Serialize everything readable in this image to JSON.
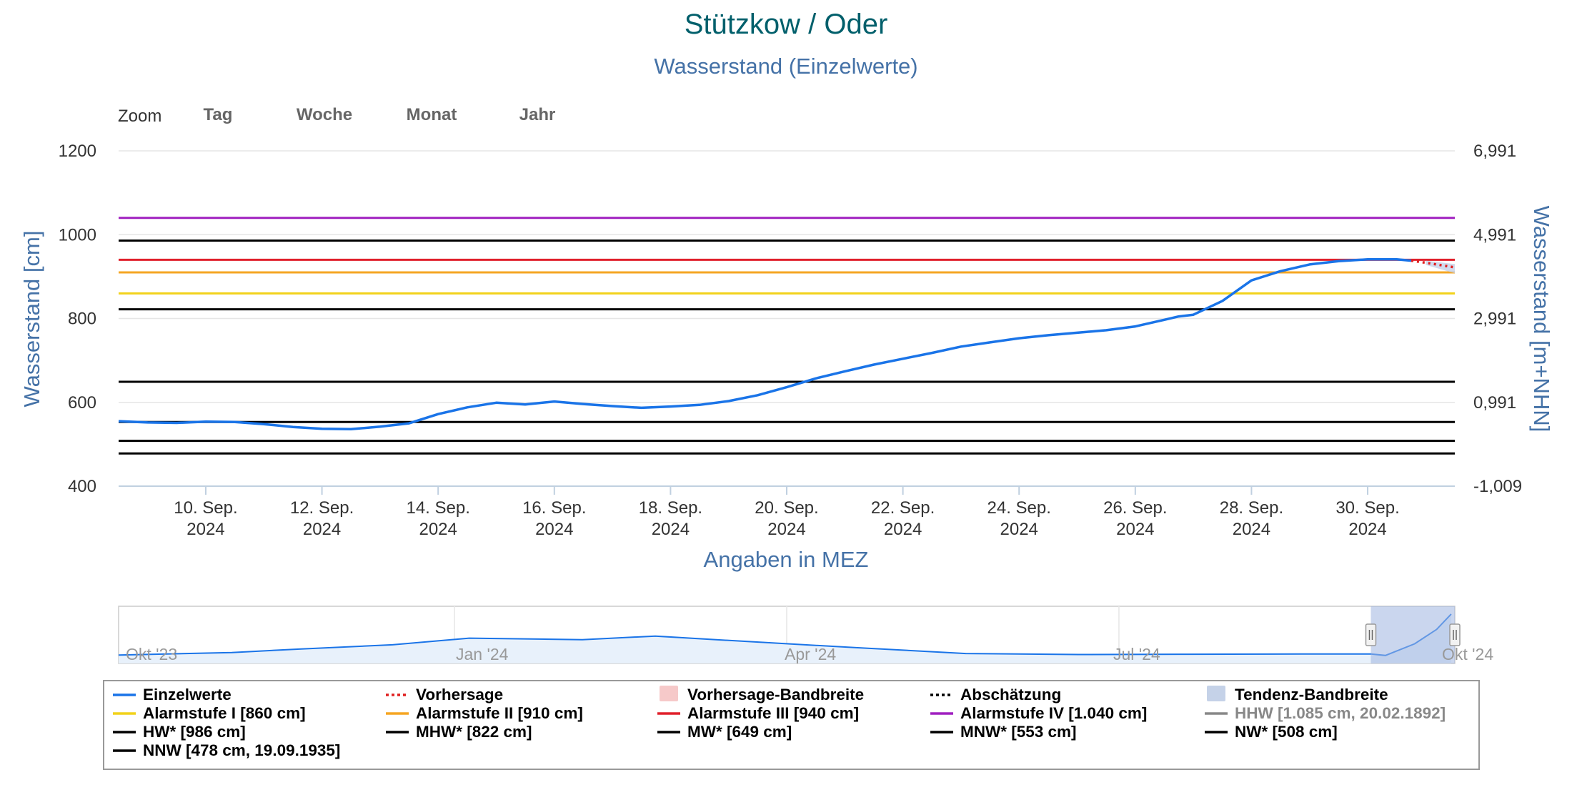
{
  "chart_data": {
    "type": "line",
    "title": "Stützkow / Oder",
    "subtitle": "Wasserstand (Einzelwerte)",
    "ylabel": "Wasserstand [cm]",
    "ylabel_right": "Wasserstand [m+NHN]",
    "xlabel": "Angaben in MEZ",
    "ylim": [
      400,
      1200
    ],
    "y_ticks": [
      "1200",
      "1000",
      "800",
      "600",
      "400"
    ],
    "y_ticks_right": [
      "6,991",
      "4,991",
      "2,991",
      "0,991",
      "-1,009"
    ],
    "x_range": [
      "2024-09-08T12:00",
      "2024-10-01T12:00"
    ],
    "x_ticks": [
      {
        "date": "2024-09-10",
        "line1": "10. Sep.",
        "line2": "2024"
      },
      {
        "date": "2024-09-12",
        "line1": "12. Sep.",
        "line2": "2024"
      },
      {
        "date": "2024-09-14",
        "line1": "14. Sep.",
        "line2": "2024"
      },
      {
        "date": "2024-09-16",
        "line1": "16. Sep.",
        "line2": "2024"
      },
      {
        "date": "2024-09-18",
        "line1": "18. Sep.",
        "line2": "2024"
      },
      {
        "date": "2024-09-20",
        "line1": "20. Sep.",
        "line2": "2024"
      },
      {
        "date": "2024-09-22",
        "line1": "22. Sep.",
        "line2": "2024"
      },
      {
        "date": "2024-09-24",
        "line1": "24. Sep.",
        "line2": "2024"
      },
      {
        "date": "2024-09-26",
        "line1": "26. Sep.",
        "line2": "2024"
      },
      {
        "date": "2024-09-28",
        "line1": "28. Sep.",
        "line2": "2024"
      },
      {
        "date": "2024-09-30",
        "line1": "30. Sep.",
        "line2": "2024"
      }
    ],
    "zoom": {
      "label": "Zoom",
      "buttons": [
        "Tag",
        "Woche",
        "Monat",
        "Jahr"
      ]
    },
    "series": [
      {
        "name": "Einzelwerte",
        "color": "#1a74e8",
        "points": [
          [
            "2024-09-08T12:00",
            555
          ],
          [
            "2024-09-09T00:00",
            552
          ],
          [
            "2024-09-09T12:00",
            551
          ],
          [
            "2024-09-10T00:00",
            554
          ],
          [
            "2024-09-10T12:00",
            553
          ],
          [
            "2024-09-11T00:00",
            548
          ],
          [
            "2024-09-11T12:00",
            541
          ],
          [
            "2024-09-12T00:00",
            537
          ],
          [
            "2024-09-12T12:00",
            536
          ],
          [
            "2024-09-13T00:00",
            542
          ],
          [
            "2024-09-13T12:00",
            550
          ],
          [
            "2024-09-14T00:00",
            572
          ],
          [
            "2024-09-14T12:00",
            588
          ],
          [
            "2024-09-15T00:00",
            599
          ],
          [
            "2024-09-15T12:00",
            595
          ],
          [
            "2024-09-16T00:00",
            602
          ],
          [
            "2024-09-16T12:00",
            596
          ],
          [
            "2024-09-17T00:00",
            591
          ],
          [
            "2024-09-17T12:00",
            587
          ],
          [
            "2024-09-18T00:00",
            590
          ],
          [
            "2024-09-18T12:00",
            594
          ],
          [
            "2024-09-19T00:00",
            603
          ],
          [
            "2024-09-19T12:00",
            617
          ],
          [
            "2024-09-20T00:00",
            636
          ],
          [
            "2024-09-20T12:00",
            657
          ],
          [
            "2024-09-21T00:00",
            674
          ],
          [
            "2024-09-21T12:00",
            690
          ],
          [
            "2024-09-22T00:00",
            704
          ],
          [
            "2024-09-22T12:00",
            718
          ],
          [
            "2024-09-23T00:00",
            733
          ],
          [
            "2024-09-23T12:00",
            743
          ],
          [
            "2024-09-24T00:00",
            753
          ],
          [
            "2024-09-24T12:00",
            760
          ],
          [
            "2024-09-25T00:00",
            766
          ],
          [
            "2024-09-25T12:00",
            772
          ],
          [
            "2024-09-26T00:00",
            781
          ],
          [
            "2024-09-26T12:00",
            797
          ],
          [
            "2024-09-26T18:00",
            805
          ],
          [
            "2024-09-27T00:00",
            809
          ],
          [
            "2024-09-27T12:00",
            842
          ],
          [
            "2024-09-28T00:00",
            891
          ],
          [
            "2024-09-28T12:00",
            913
          ],
          [
            "2024-09-29T00:00",
            929
          ],
          [
            "2024-09-29T12:00",
            937
          ],
          [
            "2024-09-30T00:00",
            941
          ],
          [
            "2024-09-30T12:00",
            941
          ],
          [
            "2024-09-30T18:00",
            938
          ]
        ]
      },
      {
        "name": "Vorhersage",
        "color": "#e02020",
        "points": [
          [
            "2024-09-30T18:00",
            938
          ],
          [
            "2024-10-01T00:00",
            933
          ],
          [
            "2024-10-01T12:00",
            922
          ]
        ]
      },
      {
        "name": "Tendenz-Bandbreite",
        "color": "#c5d2e8",
        "band": [
          [
            "2024-10-01T00:00",
            928,
            938
          ],
          [
            "2024-10-01T12:00",
            908,
            930
          ]
        ]
      }
    ],
    "reference_lines": [
      {
        "value": 1040,
        "color": "#a020c0"
      },
      {
        "value": 986,
        "color": "#000000"
      },
      {
        "value": 940,
        "color": "#e0202c"
      },
      {
        "value": 910,
        "color": "#f5a623"
      },
      {
        "value": 860,
        "color": "#f2d21a"
      },
      {
        "value": 822,
        "color": "#000000"
      },
      {
        "value": 649,
        "color": "#000000"
      },
      {
        "value": 553,
        "color": "#000000"
      },
      {
        "value": 508,
        "color": "#000000"
      },
      {
        "value": 478,
        "color": "#000000"
      }
    ],
    "navigator": {
      "labels": [
        "Okt '23",
        "Jan '24",
        "Apr '24",
        "Jul '24",
        "Okt '24"
      ],
      "range": [
        "2023-10-01",
        "2024-10-01"
      ],
      "selected": [
        "2024-09-08",
        "2024-10-01"
      ],
      "values": [
        [
          "2023-10-01",
          540
        ],
        [
          "2023-11-01",
          565
        ],
        [
          "2023-11-20",
          600
        ],
        [
          "2023-12-15",
          640
        ],
        [
          "2024-01-05",
          705
        ],
        [
          "2024-02-05",
          690
        ],
        [
          "2024-02-25",
          725
        ],
        [
          "2024-03-20",
          675
        ],
        [
          "2024-04-20",
          612
        ],
        [
          "2024-05-20",
          555
        ],
        [
          "2024-06-20",
          545
        ],
        [
          "2024-07-20",
          548
        ],
        [
          "2024-08-20",
          550
        ],
        [
          "2024-09-08",
          550
        ],
        [
          "2024-09-12",
          536
        ],
        [
          "2024-09-20",
          650
        ],
        [
          "2024-09-26",
          790
        ],
        [
          "2024-09-30",
          940
        ]
      ]
    },
    "legend": [
      {
        "label": "Einzelwerte",
        "symbol": "line",
        "color": "#1a74e8",
        "gray": false
      },
      {
        "label": "Vorhersage",
        "symbol": "dots",
        "color": "#e02020",
        "gray": false
      },
      {
        "label": "Vorhersage-Bandbreite",
        "symbol": "box",
        "color": "#f6c9c9",
        "gray": false
      },
      {
        "label": "Abschätzung",
        "symbol": "dots",
        "color": "#000000",
        "gray": false
      },
      {
        "label": "Tendenz-Bandbreite",
        "symbol": "box",
        "color": "#c5d2e8",
        "gray": false
      },
      {
        "label": "Alarmstufe I [860 cm]",
        "symbol": "line",
        "color": "#f2d21a",
        "gray": false
      },
      {
        "label": "Alarmstufe II [910 cm]",
        "symbol": "line",
        "color": "#f5a623",
        "gray": false
      },
      {
        "label": "Alarmstufe III [940 cm]",
        "symbol": "line",
        "color": "#e0202c",
        "gray": false
      },
      {
        "label": "Alarmstufe IV [1.040 cm]",
        "symbol": "line",
        "color": "#a020c0",
        "gray": false
      },
      {
        "label": "HHW [1.085 cm, 20.02.1892]",
        "symbol": "line",
        "color": "#888888",
        "gray": true
      },
      {
        "label": "HW* [986 cm]",
        "symbol": "line",
        "color": "#000000",
        "gray": false
      },
      {
        "label": "MHW* [822 cm]",
        "symbol": "line",
        "color": "#000000",
        "gray": false
      },
      {
        "label": "MW* [649 cm]",
        "symbol": "line",
        "color": "#000000",
        "gray": false
      },
      {
        "label": "MNW* [553 cm]",
        "symbol": "line",
        "color": "#000000",
        "gray": false
      },
      {
        "label": "NW* [508 cm]",
        "symbol": "line",
        "color": "#000000",
        "gray": false
      },
      {
        "label": "NNW [478 cm, 19.09.1935]",
        "symbol": "line",
        "color": "#000000",
        "gray": false
      }
    ]
  }
}
